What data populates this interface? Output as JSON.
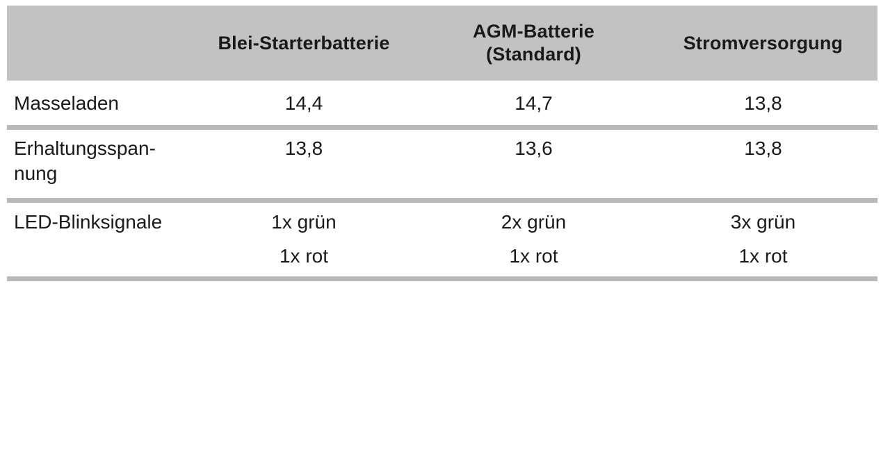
{
  "colors": {
    "header_bg": "#c2c2c2",
    "divider": "#b9b9b9",
    "text": "#1a1a1a",
    "page_bg": "#ffffff"
  },
  "header": {
    "col0": "",
    "col1": "Blei-Starterbatterie",
    "col2_line1": "AGM-Batterie",
    "col2_line2": "(Standard)",
    "col3": "Stromversorgung"
  },
  "rows": [
    {
      "label": "Masseladen",
      "c1": "14,4",
      "c2": "14,7",
      "c3": "13,8"
    },
    {
      "label_line1": "Erhaltungsspan-",
      "label_line2": "nung",
      "c1": "13,8",
      "c2": "13,6",
      "c3": "13,8"
    },
    {
      "label": "LED-Blinksignale",
      "c1_line1": "1x grün",
      "c1_line2": "1x rot",
      "c2_line1": "2x grün",
      "c2_line2": "1x rot",
      "c3_line1": "3x grün",
      "c3_line2": "1x rot"
    }
  ]
}
